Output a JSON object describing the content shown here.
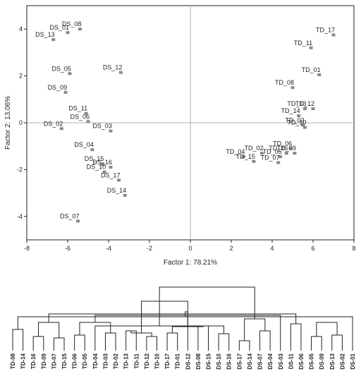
{
  "chart_data": [
    {
      "type": "scatter",
      "xlabel": "Factor 1: 78.21%",
      "ylabel": "Factor 2: 13.06%",
      "xlim": [
        -8,
        8
      ],
      "ylim": [
        -5,
        5
      ],
      "xticks": [
        -8,
        -6,
        -4,
        -2,
        0,
        2,
        4,
        6,
        8
      ],
      "yticks": [
        -4,
        -2,
        0,
        2,
        4
      ],
      "tick_labels_x": [
        "-8",
        "-6",
        "-4",
        "-2",
        "0",
        "2",
        "4",
        "6",
        "8"
      ],
      "tick_labels_y": [
        "-4",
        "-2",
        "0",
        "2",
        "4"
      ],
      "reference_lines": {
        "x": 0,
        "y": 0
      },
      "marker_color": "#888888",
      "points": [
        {
          "label": "DS_08",
          "x": -5.4,
          "y": 4.0
        },
        {
          "label": "DS_01",
          "x": -6.0,
          "y": 3.85
        },
        {
          "label": "DS_13",
          "x": -6.7,
          "y": 3.55
        },
        {
          "label": "DS_05",
          "x": -5.9,
          "y": 2.1
        },
        {
          "label": "DS_12",
          "x": -3.4,
          "y": 2.15
        },
        {
          "label": "DS_09",
          "x": -6.1,
          "y": 1.3
        },
        {
          "label": "DS_11",
          "x": -5.1,
          "y": 0.4
        },
        {
          "label": "DS_06",
          "x": -5.0,
          "y": 0.05
        },
        {
          "label": "DS_02",
          "x": -6.3,
          "y": -0.25
        },
        {
          "label": "DS_03",
          "x": -3.9,
          "y": -0.35
        },
        {
          "label": "DS_04",
          "x": -4.8,
          "y": -1.15
        },
        {
          "label": "DS_15",
          "x": -4.3,
          "y": -1.75
        },
        {
          "label": "DS_16",
          "x": -3.9,
          "y": -1.9
        },
        {
          "label": "DS_10",
          "x": -4.2,
          "y": -2.1
        },
        {
          "label": "DS_17",
          "x": -3.5,
          "y": -2.45
        },
        {
          "label": "DS_14",
          "x": -3.2,
          "y": -3.1
        },
        {
          "label": "DS_07",
          "x": -5.5,
          "y": -4.2
        },
        {
          "label": "TD_17",
          "x": 7.0,
          "y": 3.75
        },
        {
          "label": "TD_11",
          "x": 5.9,
          "y": 3.2
        },
        {
          "label": "TD_01",
          "x": 6.3,
          "y": 2.05
        },
        {
          "label": "TD_08",
          "x": 5.0,
          "y": 1.5
        },
        {
          "label": "TD_12",
          "x": 6.0,
          "y": 0.6
        },
        {
          "label": "TD_13",
          "x": 5.6,
          "y": 0.6
        },
        {
          "label": "TD_14",
          "x": 5.3,
          "y": 0.3
        },
        {
          "label": "TD_03",
          "x": 5.5,
          "y": -0.1
        },
        {
          "label": "TD_10",
          "x": 5.6,
          "y": -0.2
        },
        {
          "label": "TD_06",
          "x": 4.9,
          "y": -1.1
        },
        {
          "label": "TD_09",
          "x": 5.1,
          "y": -1.3
        },
        {
          "label": "TD_16",
          "x": 4.7,
          "y": -1.3
        },
        {
          "label": "TD_02",
          "x": 3.5,
          "y": -1.3
        },
        {
          "label": "TD_05",
          "x": 4.4,
          "y": -1.45
        },
        {
          "label": "TD_04",
          "x": 2.6,
          "y": -1.45
        },
        {
          "label": "TD_15",
          "x": 3.1,
          "y": -1.65
        },
        {
          "label": "TD_07",
          "x": 4.3,
          "y": -1.7
        }
      ]
    },
    {
      "type": "dendrogram",
      "leaves": [
        "TD-08",
        "TD-14",
        "TD-16",
        "TD-09",
        "TD-07",
        "TD-15",
        "TD-06",
        "TD-05",
        "TD-04",
        "TD-03",
        "TD-02",
        "TD-13",
        "TD-11",
        "TD-12",
        "TD-10",
        "TD-17",
        "TD-01",
        "DS-12",
        "DS-08",
        "DS-15",
        "DS-10",
        "DS-16",
        "DS-17",
        "DS-14",
        "DS-07",
        "DS-04",
        "DS-03",
        "DS-11",
        "DS-06",
        "DS-05",
        "DS-09",
        "DS-13",
        "DS-02",
        "DS-01"
      ],
      "merges": [
        [
          0,
          1,
          0.3
        ],
        [
          2,
          3,
          0.2
        ],
        [
          4,
          5,
          0.18
        ],
        [
          6,
          7,
          0.22
        ],
        [
          9,
          10,
          0.25
        ],
        [
          11,
          12,
          0.28
        ],
        [
          13,
          14,
          0.2
        ],
        [
          15,
          16,
          0.25
        ],
        [
          18,
          19,
          0.35
        ],
        [
          20,
          21,
          0.24
        ],
        [
          22,
          23,
          0.14
        ],
        [
          24,
          25,
          0.28
        ],
        [
          27,
          28,
          0.38
        ],
        [
          29,
          30,
          0.2
        ],
        [
          31,
          32,
          0.22
        ],
        [
          33,
          34,
          0.48
        ],
        [
          35,
          36,
          0.4
        ],
        [
          37,
          38,
          0.4
        ],
        [
          39,
          40,
          0.25
        ],
        [
          41,
          42,
          0.34
        ],
        [
          43,
          8,
          0.35
        ],
        [
          44,
          45,
          0.45
        ],
        [
          47,
          48,
          0.4
        ],
        [
          17,
          49,
          0.55
        ],
        [
          46,
          50,
          0.52
        ],
        [
          51,
          26,
          0.5
        ],
        [
          52,
          53,
          0.7
        ],
        [
          54,
          55,
          0.9
        ]
      ]
    }
  ]
}
